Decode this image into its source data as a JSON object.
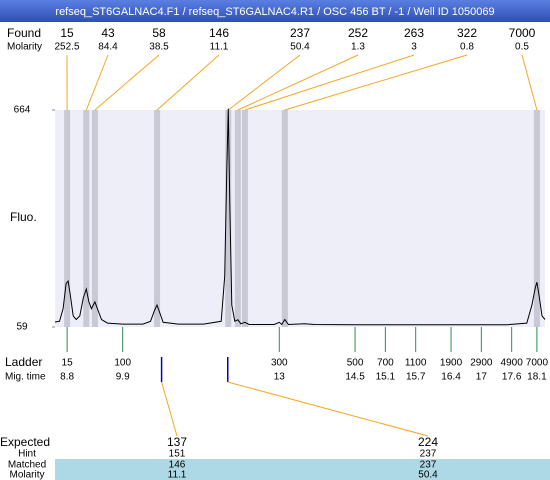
{
  "title": "refseq_ST6GALNAC4.F1 / refseq_ST6GALNAC4.R1 / OSC 456 BT / -1 / Well ID 1050069",
  "chart_data": {
    "type": "electropherogram",
    "y_label": "Fluo.",
    "ylim": [
      59,
      664
    ],
    "yticks": [
      59,
      664
    ],
    "xlim": [
      8.56,
      18.26
    ],
    "trace": {
      "x": [
        8.56,
        8.65,
        8.72,
        8.78,
        8.82,
        8.86,
        8.92,
        8.98,
        9.05,
        9.12,
        9.18,
        9.23,
        9.28,
        9.35,
        9.4,
        9.48,
        9.6,
        9.9,
        10.3,
        10.45,
        10.53,
        10.58,
        10.63,
        10.7,
        11.0,
        11.5,
        11.85,
        11.92,
        11.96,
        11.99,
        12.02,
        12.06,
        12.12,
        12.18,
        12.24,
        12.32,
        12.4,
        12.9,
        13.0,
        13.05,
        13.11,
        13.18,
        13.5,
        13.7,
        14.5,
        15.5,
        16.5,
        17.5,
        17.9,
        18.0,
        18.07,
        18.1,
        18.14,
        18.2,
        18.26
      ],
      "y": [
        73,
        75,
        110,
        180,
        187,
        150,
        90,
        80,
        90,
        140,
        165,
        130,
        110,
        129,
        110,
        80,
        70,
        67,
        67,
        75,
        105,
        120,
        100,
        72,
        67,
        67,
        75,
        200,
        500,
        668,
        400,
        120,
        75,
        79,
        68,
        72,
        66,
        66,
        72,
        66,
        80,
        66,
        68,
        66,
        65,
        65,
        65,
        65,
        70,
        120,
        170,
        184,
        150,
        90,
        80
      ]
    },
    "found": {
      "label": "Found",
      "molarity_label": "Molarity",
      "sizes": [
        15,
        43,
        58,
        146,
        237,
        252,
        263,
        322,
        7000
      ],
      "molarity": [
        252.5,
        84.4,
        38.5,
        11.1,
        50.4,
        1.3,
        3,
        0.8,
        0.5
      ],
      "mig_time": [
        8.8,
        9.18,
        9.35,
        10.58,
        11.99,
        12.18,
        12.32,
        13.11,
        18.1
      ]
    },
    "ladder": {
      "label": "Ladder",
      "mig_label": "Mig. time",
      "sizes": [
        15,
        100,
        300,
        500,
        700,
        1100,
        1900,
        2900,
        4900,
        7000
      ],
      "mig_time": [
        8.8,
        9.9,
        13,
        14.5,
        15.1,
        15.7,
        16.4,
        17,
        17.6,
        18.1
      ]
    },
    "expected": {
      "label": "Expected",
      "hint_label": "Hint",
      "matched_label": "Matched",
      "molarity_label": "Molarity",
      "sizes": [
        137,
        224
      ],
      "hint": [
        151,
        237
      ],
      "matched": [
        146,
        237
      ],
      "molarity": [
        11.1,
        50.4
      ],
      "mig_time": [
        10.67,
        11.98
      ]
    }
  }
}
